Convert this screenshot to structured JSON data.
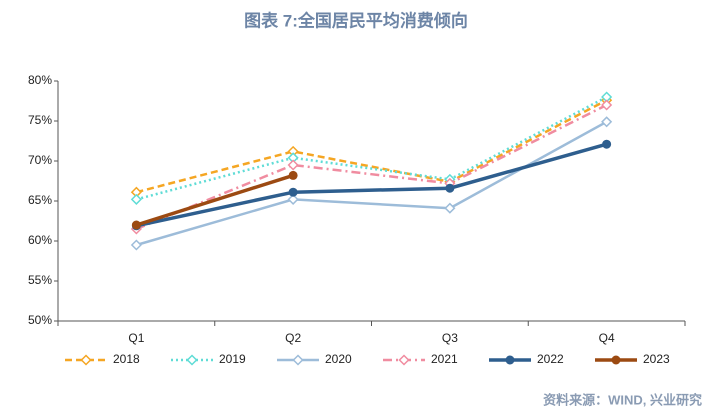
{
  "chart_data": {
    "type": "line",
    "title": "图表 7:全国居民平均消费倾向",
    "source": "资料来源：WIND, 兴业研究",
    "categories": [
      "Q1",
      "Q2",
      "Q3",
      "Q4"
    ],
    "ylim": [
      50,
      80
    ],
    "yticks": [
      {
        "value": 50,
        "label": "50%"
      },
      {
        "value": 55,
        "label": "55%"
      },
      {
        "value": 60,
        "label": "60%"
      },
      {
        "value": 65,
        "label": "65%"
      },
      {
        "value": 70,
        "label": "70%"
      },
      {
        "value": 75,
        "label": "75%"
      },
      {
        "value": 80,
        "label": "80%"
      }
    ],
    "grid": false,
    "legend": "bottom",
    "series": [
      {
        "name": "2018",
        "color": "#f5a623",
        "dash": "7,4",
        "marker": "diamond",
        "values": [
          66.1,
          71.2,
          67.4,
          77.6
        ]
      },
      {
        "name": "2019",
        "color": "#5fdcd6",
        "dash": "2,3",
        "marker": "diamond",
        "values": [
          65.2,
          70.4,
          67.7,
          78.0
        ]
      },
      {
        "name": "2020",
        "color": "#9dbcd9",
        "dash": "",
        "marker": "diamond",
        "values": [
          59.5,
          65.2,
          64.1,
          74.9
        ]
      },
      {
        "name": "2021",
        "color": "#f08ca0",
        "dash": "9,4,2,4",
        "marker": "diamond",
        "values": [
          61.5,
          69.5,
          67.2,
          77.0
        ]
      },
      {
        "name": "2022",
        "color": "#2e5e8e",
        "dash": "",
        "marker": "circle",
        "values": [
          61.9,
          66.1,
          66.6,
          72.1
        ]
      },
      {
        "name": "2023",
        "color": "#9c4a12",
        "dash": "",
        "marker": "circle",
        "values": [
          62.0,
          68.2,
          null,
          null
        ]
      }
    ]
  }
}
